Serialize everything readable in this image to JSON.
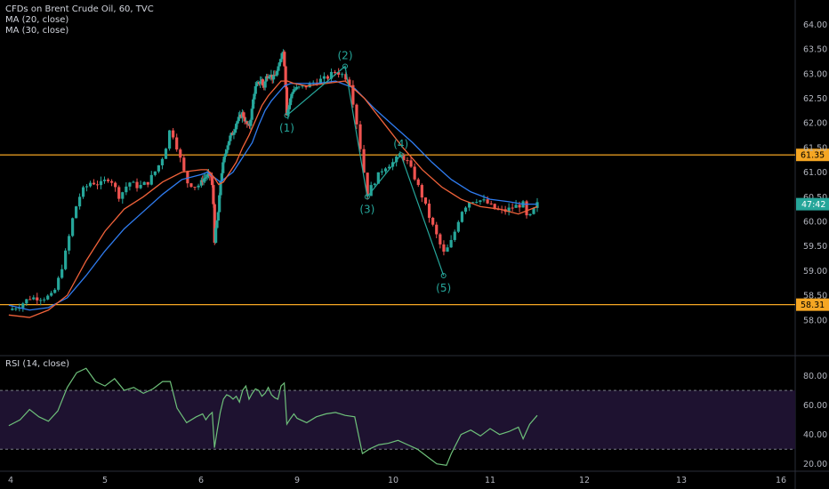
{
  "legend": {
    "symbol": "CFDs on Brent Crude Oil, 60, TVC",
    "ma20": "MA (20, close)",
    "ma30": "MA (30, close)",
    "rsi": "RSI (14, close)"
  },
  "colors": {
    "background": "#000000",
    "up": "#26a69a",
    "down": "#ef5350",
    "ma20": "#f0623a",
    "ma30": "#2f7cf0",
    "level": "#f5a623",
    "wave": "#26a69a",
    "rsi_line": "#6ec07a",
    "rsi_band": "#1e1230",
    "last_price_tag": "#26a69a",
    "axis_text": "#b2b5be"
  },
  "chart_data": [
    {
      "type": "candlestick",
      "title": "CFDs on Brent Crude Oil, 60, TVC",
      "x_ticks": [
        "4",
        "5",
        "6",
        "9",
        "10",
        "11",
        "12",
        "13",
        "16"
      ],
      "y_ticks": [
        "58.00",
        "58.50",
        "59.00",
        "59.50",
        "60.00",
        "60.50",
        "61.00",
        "61.50",
        "62.00",
        "62.50",
        "63.00",
        "63.50",
        "64.00"
      ],
      "ylim": [
        57.6,
        64.35
      ],
      "horizontal_levels": [
        {
          "value": 61.35,
          "label": "61.35"
        },
        {
          "value": 58.31,
          "label": "58.31"
        }
      ],
      "last_price_tag": "47:42",
      "last_price_value": 60.35,
      "close_path": [
        [
          3.98,
          58.2
        ],
        [
          4.1,
          58.3
        ],
        [
          4.2,
          58.45
        ],
        [
          4.35,
          58.45
        ],
        [
          4.45,
          58.5
        ],
        [
          4.52,
          58.9
        ],
        [
          4.6,
          59.5
        ],
        [
          4.65,
          60.0
        ],
        [
          4.7,
          60.35
        ],
        [
          4.75,
          60.6
        ],
        [
          4.85,
          60.8
        ],
        [
          4.95,
          60.75
        ],
        [
          5.05,
          60.9
        ],
        [
          5.15,
          60.5
        ],
        [
          5.25,
          60.8
        ],
        [
          5.35,
          60.7
        ],
        [
          5.45,
          60.8
        ],
        [
          5.55,
          61.1
        ],
        [
          5.62,
          61.4
        ],
        [
          5.68,
          61.9
        ],
        [
          5.72,
          61.7
        ],
        [
          5.78,
          61.3
        ],
        [
          5.85,
          60.8
        ],
        [
          5.95,
          60.7
        ],
        [
          6.05,
          60.85
        ],
        [
          6.15,
          60.9
        ],
        [
          6.25,
          60.95
        ],
        [
          6.32,
          60.9
        ],
        [
          6.38,
          60.5
        ],
        [
          6.42,
          59.6
        ],
        [
          6.5,
          60.0
        ],
        [
          6.55,
          60.25
        ],
        [
          6.62,
          60.9
        ],
        [
          6.7,
          61.2
        ],
        [
          6.8,
          61.5
        ],
        [
          6.9,
          61.7
        ],
        [
          7.0,
          61.8
        ],
        [
          7.1,
          62.0
        ],
        [
          7.2,
          62.1
        ],
        [
          7.3,
          62.2
        ],
        [
          7.4,
          62.0
        ],
        [
          7.5,
          61.9
        ],
        [
          7.6,
          62.3
        ],
        [
          7.65,
          62.6
        ],
        [
          7.72,
          62.75
        ],
        [
          7.8,
          62.8
        ],
        [
          7.88,
          62.9
        ],
        [
          7.95,
          62.7
        ],
        [
          8.05,
          62.95
        ],
        [
          8.15,
          63.0
        ],
        [
          8.25,
          62.9
        ],
        [
          8.35,
          63.0
        ],
        [
          8.42,
          63.1
        ],
        [
          8.5,
          63.35
        ],
        [
          8.55,
          63.55
        ],
        [
          8.62,
          63.1
        ],
        [
          8.68,
          62.2
        ],
        [
          8.75,
          62.35
        ],
        [
          8.85,
          62.65
        ],
        [
          9.0,
          62.7
        ],
        [
          9.1,
          62.75
        ],
        [
          9.2,
          62.85
        ],
        [
          9.3,
          62.9
        ],
        [
          9.4,
          63.05
        ],
        [
          9.5,
          62.95
        ],
        [
          9.55,
          62.8
        ],
        [
          9.62,
          62.0
        ],
        [
          9.68,
          61.2
        ],
        [
          9.73,
          60.55
        ],
        [
          9.8,
          60.8
        ],
        [
          9.9,
          61.1
        ],
        [
          10.0,
          61.2
        ],
        [
          10.08,
          61.35
        ],
        [
          10.15,
          61.2
        ],
        [
          10.22,
          60.9
        ],
        [
          10.3,
          60.5
        ],
        [
          10.38,
          60.05
        ],
        [
          10.45,
          59.7
        ],
        [
          10.52,
          59.35
        ],
        [
          10.58,
          59.5
        ],
        [
          10.62,
          59.7
        ],
        [
          10.7,
          60.2
        ],
        [
          10.78,
          60.4
        ],
        [
          10.85,
          60.45
        ],
        [
          10.95,
          60.4
        ],
        [
          11.05,
          60.25
        ],
        [
          11.15,
          60.2
        ],
        [
          11.25,
          60.3
        ],
        [
          11.35,
          60.35
        ],
        [
          11.4,
          60.0
        ],
        [
          11.45,
          60.2
        ],
        [
          11.5,
          60.35
        ]
      ],
      "ma20_path": [
        [
          3.98,
          58.1
        ],
        [
          4.2,
          58.05
        ],
        [
          4.4,
          58.2
        ],
        [
          4.6,
          58.5
        ],
        [
          4.8,
          59.2
        ],
        [
          5.0,
          59.8
        ],
        [
          5.2,
          60.25
        ],
        [
          5.4,
          60.5
        ],
        [
          5.6,
          60.8
        ],
        [
          5.8,
          61.0
        ],
        [
          6.0,
          61.05
        ],
        [
          6.2,
          61.05
        ],
        [
          6.4,
          60.9
        ],
        [
          6.55,
          60.75
        ],
        [
          6.7,
          60.8
        ],
        [
          6.9,
          61.0
        ],
        [
          7.1,
          61.2
        ],
        [
          7.3,
          61.5
        ],
        [
          7.5,
          61.75
        ],
        [
          7.7,
          62.05
        ],
        [
          7.9,
          62.35
        ],
        [
          8.1,
          62.55
        ],
        [
          8.3,
          62.7
        ],
        [
          8.5,
          62.85
        ],
        [
          8.7,
          62.85
        ],
        [
          8.9,
          62.8
        ],
        [
          9.1,
          62.75
        ],
        [
          9.3,
          62.8
        ],
        [
          9.5,
          62.85
        ],
        [
          9.7,
          62.5
        ],
        [
          9.9,
          62.0
        ],
        [
          10.1,
          61.5
        ],
        [
          10.3,
          61.05
        ],
        [
          10.5,
          60.7
        ],
        [
          10.7,
          60.45
        ],
        [
          10.9,
          60.3
        ],
        [
          11.1,
          60.25
        ],
        [
          11.3,
          60.15
        ],
        [
          11.5,
          60.3
        ]
      ],
      "ma30_path": [
        [
          3.98,
          58.3
        ],
        [
          4.2,
          58.2
        ],
        [
          4.4,
          58.25
        ],
        [
          4.6,
          58.45
        ],
        [
          4.8,
          58.9
        ],
        [
          5.0,
          59.4
        ],
        [
          5.2,
          59.85
        ],
        [
          5.4,
          60.2
        ],
        [
          5.6,
          60.55
        ],
        [
          5.8,
          60.85
        ],
        [
          6.0,
          60.95
        ],
        [
          6.2,
          61.0
        ],
        [
          6.4,
          60.9
        ],
        [
          6.6,
          60.8
        ],
        [
          6.8,
          60.9
        ],
        [
          7.0,
          61.0
        ],
        [
          7.2,
          61.2
        ],
        [
          7.4,
          61.4
        ],
        [
          7.6,
          61.6
        ],
        [
          7.8,
          61.95
        ],
        [
          8.0,
          62.25
        ],
        [
          8.2,
          62.45
        ],
        [
          8.4,
          62.6
        ],
        [
          8.6,
          62.75
        ],
        [
          8.8,
          62.8
        ],
        [
          9.0,
          62.8
        ],
        [
          9.2,
          62.8
        ],
        [
          9.4,
          62.85
        ],
        [
          9.6,
          62.7
        ],
        [
          9.8,
          62.3
        ],
        [
          10.0,
          61.95
        ],
        [
          10.2,
          61.6
        ],
        [
          10.4,
          61.2
        ],
        [
          10.6,
          60.85
        ],
        [
          10.8,
          60.6
        ],
        [
          11.0,
          60.45
        ],
        [
          11.2,
          60.4
        ],
        [
          11.35,
          60.35
        ],
        [
          11.5,
          60.35
        ]
      ],
      "wave_points": [
        {
          "label": "(1)",
          "x": 8.68,
          "y": 62.15,
          "pos": "below"
        },
        {
          "label": "(2)",
          "x": 9.5,
          "y": 63.15,
          "pos": "above"
        },
        {
          "label": "(3)",
          "x": 9.73,
          "y": 60.5,
          "pos": "below"
        },
        {
          "label": "(4)",
          "x": 10.08,
          "y": 61.35,
          "pos": "above"
        },
        {
          "label": "(5)",
          "x": 10.52,
          "y": 58.9,
          "pos": "below"
        }
      ]
    },
    {
      "type": "line",
      "title": "RSI (14, close)",
      "y_ticks": [
        "20.00",
        "40.00",
        "60.00",
        "80.00"
      ],
      "ylim": [
        15,
        90
      ],
      "band": [
        30,
        70
      ],
      "values": [
        [
          3.98,
          46
        ],
        [
          4.1,
          50
        ],
        [
          4.2,
          57
        ],
        [
          4.3,
          52
        ],
        [
          4.4,
          49
        ],
        [
          4.5,
          56
        ],
        [
          4.6,
          72
        ],
        [
          4.7,
          82
        ],
        [
          4.8,
          85
        ],
        [
          4.9,
          76
        ],
        [
          5.0,
          73
        ],
        [
          5.1,
          78
        ],
        [
          5.2,
          70
        ],
        [
          5.3,
          72
        ],
        [
          5.4,
          68
        ],
        [
          5.5,
          71
        ],
        [
          5.6,
          76
        ],
        [
          5.68,
          76
        ],
        [
          5.75,
          58
        ],
        [
          5.85,
          48
        ],
        [
          5.95,
          52
        ],
        [
          6.05,
          54
        ],
        [
          6.15,
          50
        ],
        [
          6.25,
          53
        ],
        [
          6.35,
          55
        ],
        [
          6.42,
          31
        ],
        [
          6.5,
          42
        ],
        [
          6.6,
          55
        ],
        [
          6.7,
          64
        ],
        [
          6.8,
          67
        ],
        [
          6.9,
          66
        ],
        [
          7.0,
          64
        ],
        [
          7.1,
          66
        ],
        [
          7.2,
          62
        ],
        [
          7.3,
          70
        ],
        [
          7.4,
          73
        ],
        [
          7.5,
          64
        ],
        [
          7.6,
          68
        ],
        [
          7.7,
          71
        ],
        [
          7.8,
          70
        ],
        [
          7.9,
          66
        ],
        [
          8.0,
          68
        ],
        [
          8.1,
          72
        ],
        [
          8.2,
          67
        ],
        [
          8.3,
          65
        ],
        [
          8.4,
          64
        ],
        [
          8.5,
          73
        ],
        [
          8.6,
          75
        ],
        [
          8.68,
          47
        ],
        [
          8.8,
          51
        ],
        [
          8.9,
          54
        ],
        [
          9.0,
          51
        ],
        [
          9.1,
          48
        ],
        [
          9.2,
          52
        ],
        [
          9.3,
          54
        ],
        [
          9.4,
          55
        ],
        [
          9.5,
          53
        ],
        [
          9.6,
          52
        ],
        [
          9.68,
          27
        ],
        [
          9.75,
          30
        ],
        [
          9.85,
          33
        ],
        [
          9.95,
          34
        ],
        [
          10.05,
          36
        ],
        [
          10.15,
          33
        ],
        [
          10.25,
          30
        ],
        [
          10.35,
          25
        ],
        [
          10.45,
          20
        ],
        [
          10.55,
          19
        ],
        [
          10.6,
          27
        ],
        [
          10.7,
          40
        ],
        [
          10.8,
          43
        ],
        [
          10.9,
          39
        ],
        [
          11.0,
          44
        ],
        [
          11.1,
          40
        ],
        [
          11.2,
          42
        ],
        [
          11.3,
          45
        ],
        [
          11.35,
          37
        ],
        [
          11.42,
          47
        ],
        [
          11.5,
          53
        ]
      ]
    }
  ]
}
